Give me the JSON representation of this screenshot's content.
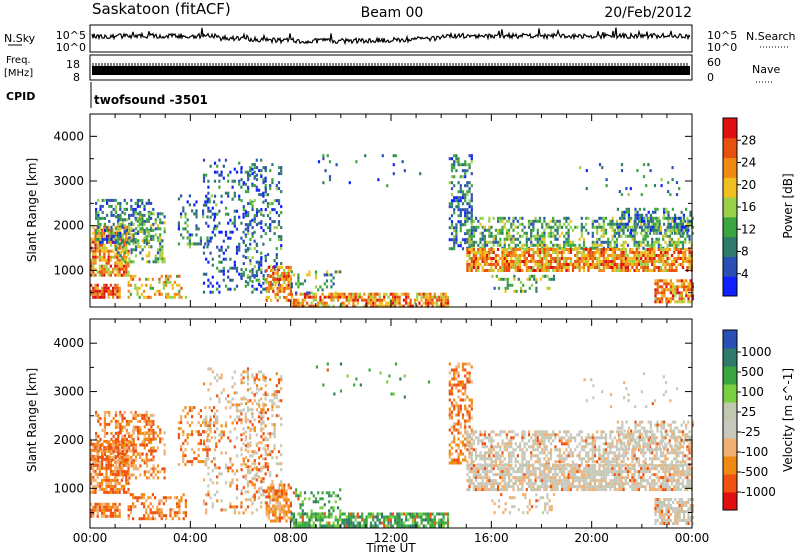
{
  "header": {
    "station": "Saskatoon (fitACF)",
    "beam": "Beam 00",
    "date": "20/Feb/2012"
  },
  "noise_panel": {
    "left_label": "N.Sky",
    "ticks": [
      "10^5",
      "10^0"
    ],
    "right_label": "N.Search",
    "right_ticks": [
      "10^5",
      "10^0"
    ]
  },
  "freq_panel": {
    "left_label_1": "Freq.",
    "left_label_2": "[MHz]",
    "left_ticks": [
      "18",
      "8"
    ],
    "right_label": "Nave",
    "right_ticks": [
      "60",
      "0"
    ]
  },
  "cpid_panel": {
    "label": "CPID",
    "value": "twofsound -3501"
  },
  "colors": {
    "power_scale": [
      "#1020ff",
      "#2a4fb5",
      "#2f7a6a",
      "#3aa640",
      "#99d14a",
      "#f0c020",
      "#f08a10",
      "#e85010",
      "#e01010"
    ],
    "velocity_scale": [
      "#e01010",
      "#f05010",
      "#f08a10",
      "#f0b070",
      "#c8c8be",
      "#c0c8b0",
      "#7ad040",
      "#3aa640",
      "#2f7a6a",
      "#2a4fb5"
    ]
  },
  "chart_data": [
    {
      "type": "heatmap",
      "name": "power",
      "ylabel": "Slant Range [km]",
      "ylim": [
        180,
        4500
      ],
      "yticks": [
        1000,
        2000,
        3000,
        4000
      ],
      "xlim": [
        0,
        24
      ],
      "colorbar": {
        "label": "Power [dB]",
        "range": [
          0,
          32
        ],
        "tick_values": [
          4,
          8,
          12,
          16,
          20,
          24,
          28
        ],
        "tick_labels": [
          "4",
          "8",
          "12",
          "16",
          "20",
          "24",
          "28"
        ]
      }
    },
    {
      "type": "heatmap",
      "name": "velocity",
      "ylabel": "Slant Range [km]",
      "ylim": [
        180,
        4500
      ],
      "yticks": [
        1000,
        2000,
        3000,
        4000
      ],
      "xlim": [
        0,
        24
      ],
      "xlabel": "Time UT",
      "xticks": [
        0,
        4,
        8,
        12,
        16,
        20,
        24
      ],
      "xtick_labels": [
        "00:00",
        "04:00",
        "08:00",
        "12:00",
        "16:00",
        "20:00",
        "00:00"
      ],
      "colorbar": {
        "label": "Velocity [m s^-1]",
        "tick_labels": [
          "1000",
          "500",
          "100",
          "25",
          "-25",
          "-100",
          "-500",
          "-1000"
        ]
      }
    }
  ]
}
